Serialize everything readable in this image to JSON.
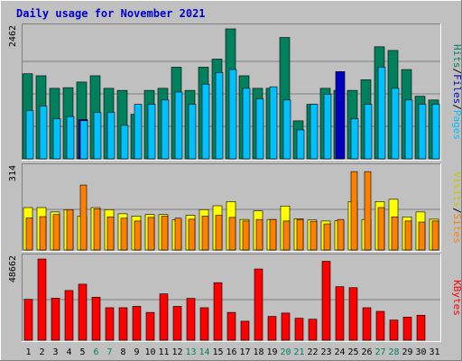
{
  "chart_data": {
    "type": "bar",
    "title": "Daily usage for November 2021",
    "days": [
      "1",
      "2",
      "3",
      "4",
      "5",
      "6",
      "7",
      "8",
      "9",
      "10",
      "11",
      "12",
      "13",
      "14",
      "15",
      "16",
      "17",
      "18",
      "19",
      "20",
      "21",
      "22",
      "23",
      "24",
      "25",
      "26",
      "27",
      "28",
      "29",
      "30",
      "31"
    ],
    "weekend_days": [
      "6",
      "7",
      "13",
      "14",
      "20",
      "21",
      "27",
      "28"
    ],
    "panels": [
      {
        "ylabel_max": "2462",
        "ymax": 2462,
        "series": [
          {
            "name": "Hits",
            "color": "#00805c",
            "values": [
              1612,
              1574,
              1336,
              1349,
              1455,
              1574,
              1336,
              1297,
              844,
              1297,
              1336,
              1736,
              1297,
              1736,
              1890,
              2462,
              1574,
              1336,
              1336,
              2299,
              720,
              1033,
              1336,
              1297,
              1297,
              1498,
              2123,
              2053,
              1692,
              1186,
              1115
            ]
          },
          {
            "name": "Files",
            "color": "#0000c0",
            "values": [
              0,
              0,
              0,
              0,
              743,
              0,
              0,
              0,
              0,
              0,
              0,
              0,
              0,
              0,
              0,
              0,
              0,
              0,
              0,
              0,
              0,
              0,
              0,
              1654,
              0,
              0,
              0,
              0,
              0,
              0,
              0
            ]
          },
          {
            "name": "Pages",
            "color": "#00c0ff",
            "values": [
              915,
              999,
              759,
              802,
              722,
              880,
              880,
              634,
              1033,
              1033,
              1115,
              1266,
              1033,
              1415,
              1634,
              1692,
              1336,
              1135,
              1365,
              1115,
              548,
              1033,
              1223,
              0,
              759,
              1033,
              1736,
              1336,
              1115,
              1033,
              1033
            ]
          }
        ]
      },
      {
        "ylabel_max": "314",
        "ymax": 314,
        "series": [
          {
            "name": "Visits",
            "color": "#ffff00",
            "values": [
              164,
              164,
              147,
              156,
              131,
              164,
              156,
              140,
              131,
              137,
              137,
              116,
              134,
              156,
              171,
              187,
              118,
              151,
              118,
              170,
              121,
              116,
              112,
              114,
              187,
              118,
              187,
              196,
              128,
              147,
              119
            ]
          },
          {
            "name": "Sites",
            "color": "#ff8000",
            "values": [
              124,
              129,
              137,
              156,
              251,
              159,
              128,
              123,
              112,
              126,
              131,
              123,
              119,
              131,
              134,
              126,
              112,
              118,
              118,
              112,
              118,
              111,
              101,
              118,
              303,
              303,
              164,
              128,
              112,
              108,
              112
            ]
          }
        ]
      },
      {
        "ylabel_max": "48662",
        "ymax": 48662,
        "series": [
          {
            "name": "KBytes",
            "color": "#ff0000",
            "values": [
              24550,
              48662,
              25250,
              29800,
              33600,
              25800,
              19500,
              19500,
              20300,
              16700,
              27800,
              20300,
              25100,
              19500,
              34500,
              16700,
              11400,
              42700,
              14300,
              16300,
              13200,
              12600,
              47300,
              32100,
              31500,
              19500,
              17300,
              12100,
              13900,
              15000,
              0
            ]
          }
        ]
      }
    ],
    "side_labels": {
      "top": [
        "Hits",
        "/",
        "Files",
        "/",
        "Pages"
      ],
      "top_colors": [
        "#00805c",
        "#000000",
        "#0000c0",
        "#000000",
        "#00c0ff"
      ],
      "middle": [
        "Visits",
        "/",
        "Sites"
      ],
      "middle_colors": [
        "#c8c800",
        "#000000",
        "#ff8000"
      ],
      "bottom": [
        "KBytes"
      ],
      "bottom_colors": [
        "#ff0000"
      ]
    },
    "tick_colors": {
      "weekday": "#000000",
      "weekend": "#00805c"
    },
    "grid": true
  }
}
